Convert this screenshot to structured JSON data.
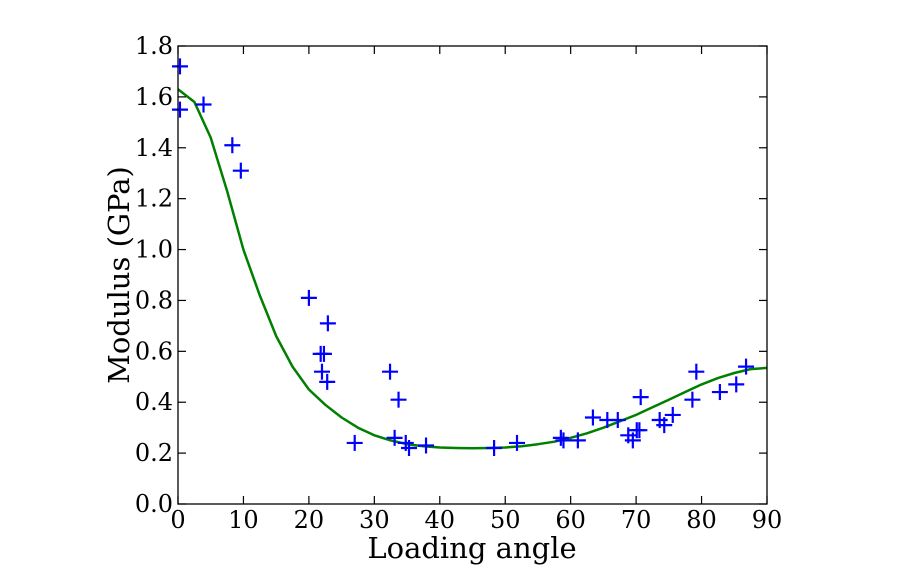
{
  "chart_data": {
    "type": "scatter",
    "title": "",
    "xlabel": "Loading angle",
    "ylabel": "Modulus (GPa)",
    "xlim": [
      0,
      90
    ],
    "ylim": [
      0.0,
      1.8
    ],
    "x_ticks": [
      0,
      10,
      20,
      30,
      40,
      50,
      60,
      70,
      80,
      90
    ],
    "x_tick_labels": [
      "0",
      "10",
      "20",
      "30",
      "40",
      "50",
      "60",
      "70",
      "80",
      "90"
    ],
    "y_ticks": [
      0.0,
      0.2,
      0.4,
      0.6,
      0.8,
      1.0,
      1.2,
      1.4,
      1.6,
      1.8
    ],
    "y_tick_labels": [
      "0.0",
      "0.2",
      "0.4",
      "0.6",
      "0.8",
      "1.0",
      "1.2",
      "1.4",
      "1.6",
      "1.8"
    ],
    "grid": false,
    "legend": "none",
    "series": [
      {
        "kind": "scatter",
        "marker": "plus",
        "color": "#0000ff",
        "points": [
          [
            0.3,
            1.72
          ],
          [
            0.3,
            1.55
          ],
          [
            3.9,
            1.57
          ],
          [
            8.3,
            1.41
          ],
          [
            9.6,
            1.31
          ],
          [
            20.0,
            0.81
          ],
          [
            21.8,
            0.59
          ],
          [
            22.0,
            0.52
          ],
          [
            22.3,
            0.59
          ],
          [
            22.8,
            0.48
          ],
          [
            22.9,
            0.71
          ],
          [
            27.0,
            0.24
          ],
          [
            32.4,
            0.52
          ],
          [
            33.1,
            0.26
          ],
          [
            33.7,
            0.41
          ],
          [
            34.8,
            0.24
          ],
          [
            35.3,
            0.22
          ],
          [
            37.9,
            0.23
          ],
          [
            48.3,
            0.22
          ],
          [
            51.8,
            0.24
          ],
          [
            58.5,
            0.26
          ],
          [
            58.9,
            0.25
          ],
          [
            61.1,
            0.25
          ],
          [
            63.4,
            0.34
          ],
          [
            65.6,
            0.33
          ],
          [
            67.2,
            0.33
          ],
          [
            68.8,
            0.27
          ],
          [
            69.5,
            0.25
          ],
          [
            70.1,
            0.29
          ],
          [
            70.5,
            0.29
          ],
          [
            70.7,
            0.42
          ],
          [
            73.6,
            0.33
          ],
          [
            74.3,
            0.31
          ],
          [
            75.6,
            0.35
          ],
          [
            78.6,
            0.41
          ],
          [
            79.2,
            0.52
          ],
          [
            82.8,
            0.44
          ],
          [
            85.3,
            0.47
          ],
          [
            86.8,
            0.54
          ]
        ]
      },
      {
        "kind": "line",
        "color": "#008000",
        "x": [
          0,
          2.5,
          5,
          7.5,
          10,
          12.5,
          15,
          17.5,
          20,
          22.5,
          25,
          27.5,
          30,
          32.5,
          35,
          37.5,
          40,
          42.5,
          45,
          47.5,
          50,
          52.5,
          55,
          57.5,
          60,
          62.5,
          65,
          67.5,
          70,
          72.5,
          75,
          77.5,
          80,
          82.5,
          85,
          87.5,
          90
        ],
        "y": [
          1.63,
          1.58,
          1.44,
          1.23,
          1.0,
          0.82,
          0.66,
          0.54,
          0.45,
          0.39,
          0.34,
          0.3,
          0.27,
          0.25,
          0.235,
          0.227,
          0.222,
          0.22,
          0.219,
          0.22,
          0.222,
          0.227,
          0.235,
          0.245,
          0.26,
          0.278,
          0.3,
          0.325,
          0.35,
          0.38,
          0.41,
          0.44,
          0.47,
          0.495,
          0.515,
          0.53,
          0.535
        ]
      }
    ]
  }
}
